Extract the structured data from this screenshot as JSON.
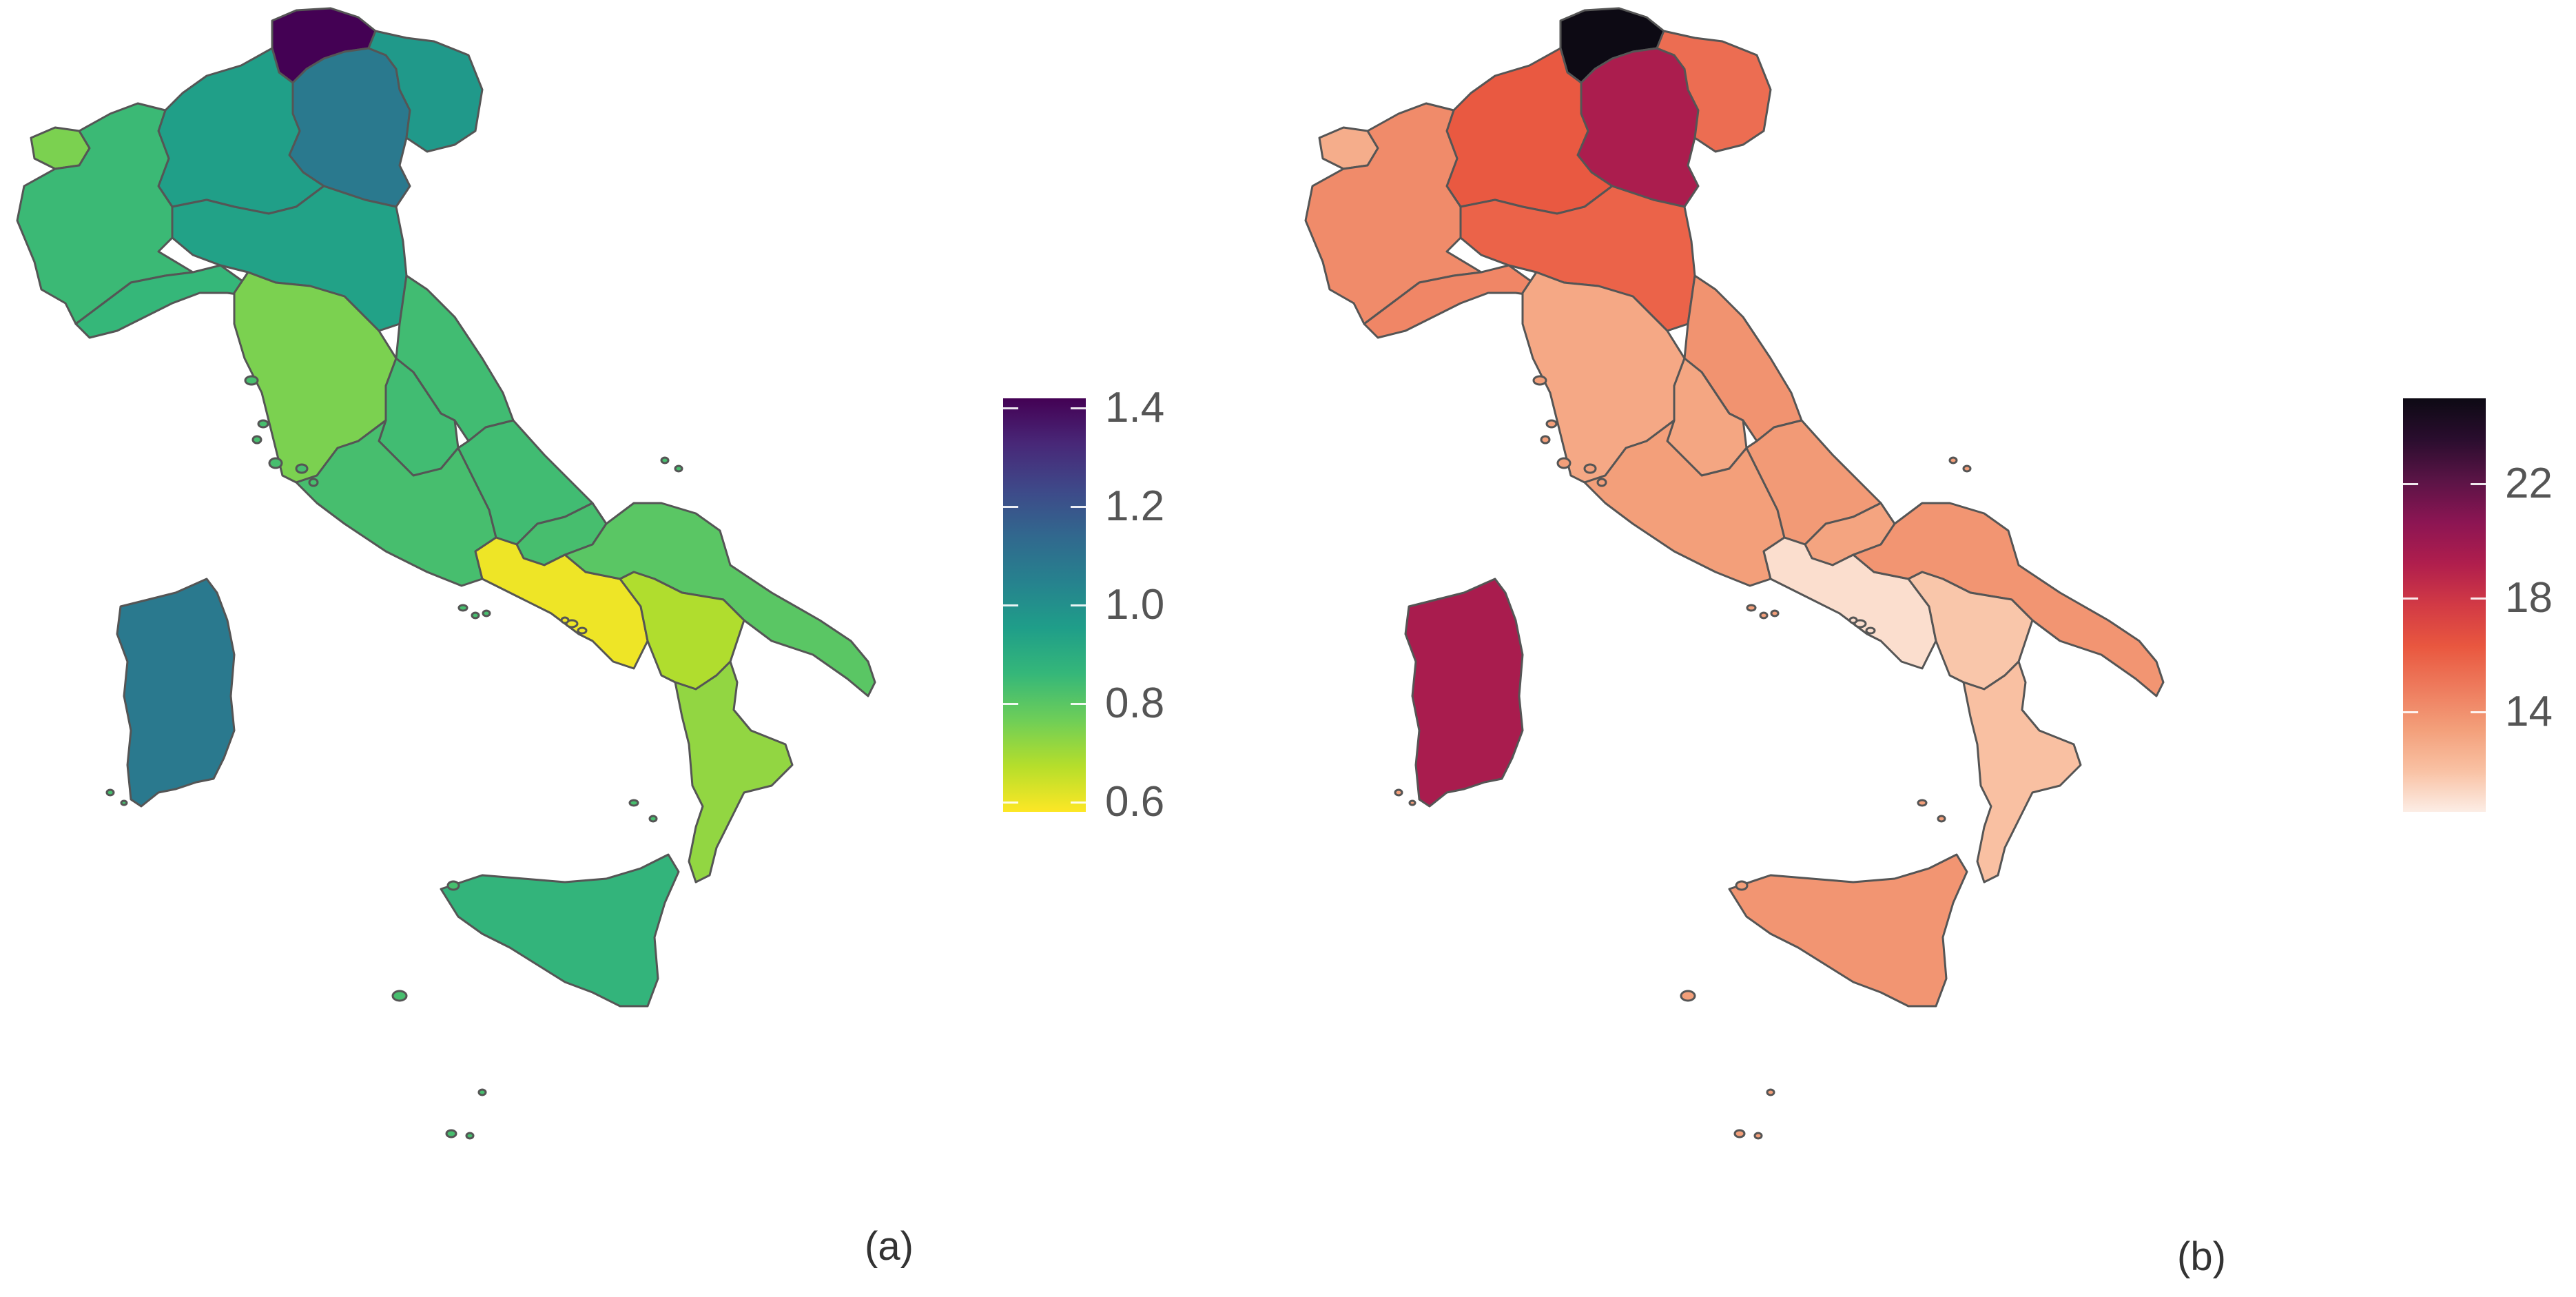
{
  "panels": [
    {
      "caption": "(a)",
      "colorscale": [
        "#fde725",
        "#b5de2b",
        "#6ece58",
        "#35b779",
        "#1f9e89",
        "#26828e",
        "#31688e",
        "#3e4989",
        "#482878",
        "#440154"
      ],
      "legend": {
        "ticks": [
          "1.4",
          "1.2",
          "1.0",
          "0.8",
          "0.6"
        ],
        "range": [
          0.58,
          1.42
        ]
      },
      "regions": {
        "trentino-alto-adige": 1.42,
        "veneto": 1.08,
        "friuli-venezia-giulia": 0.97,
        "lombardia": 0.95,
        "emilia-romagna": 0.94,
        "valle-d-aosta": 0.75,
        "piemonte": 0.85,
        "liguria": 0.86,
        "toscana": 0.75,
        "marche": 0.84,
        "umbria": 0.84,
        "lazio": 0.83,
        "abruzzo": 0.84,
        "molise": 0.83,
        "campania": 0.6,
        "puglia": 0.8,
        "basilicata": 0.68,
        "calabria": 0.72,
        "sicilia": 0.87,
        "sardegna": 1.08
      }
    },
    {
      "caption": "(b)",
      "colorscale": [
        "#fcede5",
        "#f9c1a3",
        "#f39f7a",
        "#ee7b5d",
        "#e9573f",
        "#d23a45",
        "#b01e4d",
        "#8c1553",
        "#5b1446",
        "#2a0d2e",
        "#0d0a14"
      ],
      "legend": {
        "ticks": [
          "22",
          "18",
          "14"
        ],
        "range": [
          10.5,
          25.0
        ]
      },
      "regions": {
        "trentino-alto-adige": 25.0,
        "veneto": 19.4,
        "friuli-venezia-giulia": 15.4,
        "lombardia": 16.2,
        "emilia-romagna": 15.8,
        "valle-d-aosta": 12.8,
        "piemonte": 14.2,
        "liguria": 14.4,
        "toscana": 13.0,
        "marche": 13.9,
        "umbria": 13.1,
        "lazio": 13.4,
        "abruzzo": 13.6,
        "molise": 13.2,
        "campania": 11.0,
        "puglia": 13.8,
        "basilicata": 11.8,
        "calabria": 12.0,
        "sicilia": 13.8,
        "sardegna": 19.5
      }
    }
  ]
}
